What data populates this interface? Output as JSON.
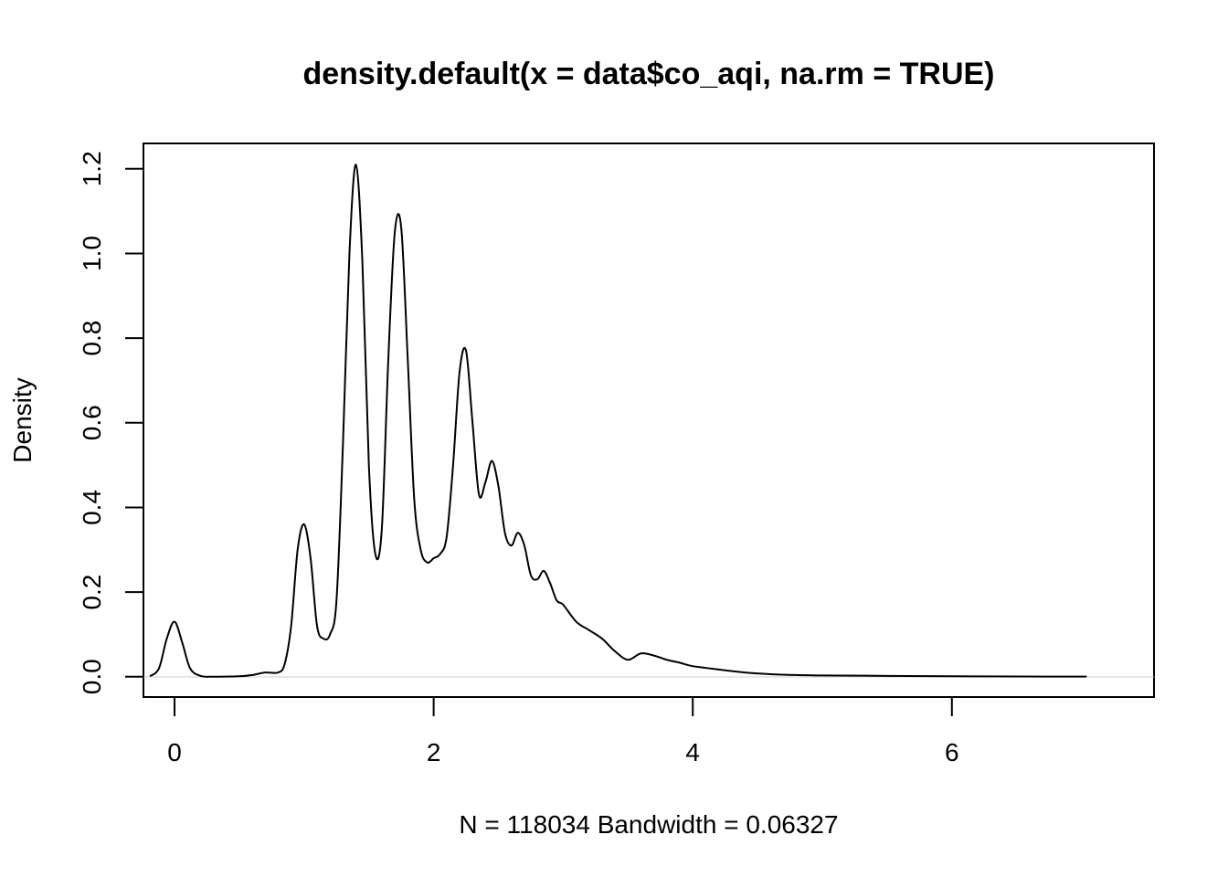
{
  "chart_data": {
    "type": "line",
    "title": "density.default(x = data$co_aqi, na.rm = TRUE)",
    "xlabel": "N = 118034   Bandwidth = 0.06327",
    "ylabel": "Density",
    "xlim": [
      -0.24,
      7.56
    ],
    "ylim": [
      -0.048,
      1.26
    ],
    "x_ticks": [
      0,
      2,
      4,
      6
    ],
    "x_tick_labels": [
      "0",
      "2",
      "4",
      "6"
    ],
    "y_ticks": [
      0.0,
      0.2,
      0.4,
      0.6,
      0.8,
      1.0,
      1.2
    ],
    "y_tick_labels": [
      "0.0",
      "0.2",
      "0.4",
      "0.6",
      "0.8",
      "1.0",
      "1.2"
    ],
    "grid": false,
    "series": [
      {
        "name": "density",
        "x": [
          -0.19,
          -0.12,
          -0.06,
          0.0,
          0.06,
          0.12,
          0.2,
          0.3,
          0.5,
          0.6,
          0.7,
          0.8,
          0.85,
          0.9,
          0.95,
          1.0,
          1.05,
          1.1,
          1.15,
          1.2,
          1.25,
          1.3,
          1.35,
          1.4,
          1.45,
          1.5,
          1.55,
          1.6,
          1.65,
          1.7,
          1.75,
          1.8,
          1.85,
          1.9,
          1.95,
          2.0,
          2.05,
          2.1,
          2.15,
          2.2,
          2.25,
          2.3,
          2.35,
          2.4,
          2.45,
          2.5,
          2.55,
          2.6,
          2.65,
          2.7,
          2.75,
          2.8,
          2.85,
          2.9,
          2.95,
          3.0,
          3.1,
          3.2,
          3.3,
          3.4,
          3.5,
          3.6,
          3.7,
          3.8,
          3.9,
          4.0,
          4.2,
          4.4,
          4.6,
          4.8,
          5.0,
          5.5,
          6.0,
          6.5,
          7.04
        ],
        "y": [
          0.001,
          0.02,
          0.09,
          0.13,
          0.08,
          0.02,
          0.002,
          0.0,
          0.001,
          0.004,
          0.01,
          0.01,
          0.03,
          0.12,
          0.3,
          0.36,
          0.28,
          0.12,
          0.09,
          0.1,
          0.18,
          0.55,
          1.0,
          1.21,
          0.98,
          0.5,
          0.29,
          0.35,
          0.75,
          1.05,
          1.06,
          0.75,
          0.42,
          0.3,
          0.27,
          0.28,
          0.29,
          0.33,
          0.5,
          0.72,
          0.77,
          0.6,
          0.43,
          0.46,
          0.51,
          0.45,
          0.34,
          0.31,
          0.34,
          0.31,
          0.24,
          0.23,
          0.25,
          0.22,
          0.18,
          0.17,
          0.13,
          0.11,
          0.09,
          0.06,
          0.04,
          0.055,
          0.05,
          0.04,
          0.033,
          0.025,
          0.017,
          0.01,
          0.006,
          0.004,
          0.003,
          0.002,
          0.001,
          0.0005,
          0.0003
        ]
      }
    ]
  }
}
